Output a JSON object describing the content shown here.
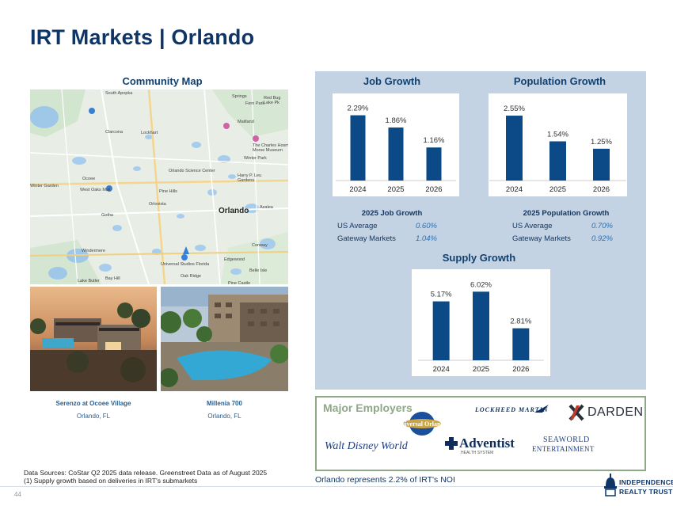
{
  "title": "IRT Markets | Orlando",
  "map_section": {
    "heading": "Community Map",
    "places": [
      "South Apopka",
      "Springs",
      "Fern Park",
      "Red Bug Lake Pk",
      "Clarcona",
      "Lockhart",
      "Maitland",
      "The Charles Hosmer Morse Museum...",
      "Winter Park",
      "Orlando Science Center",
      "Harry P. Leu Gardens",
      "Winter Garden",
      "Ocoee",
      "Pine Hills",
      "Orlovista",
      "Orlando",
      "Azalea",
      "Gotha",
      "Windermere",
      "Conway",
      "Edgewood",
      "Universal Studios Florida",
      "Lake Butler",
      "Bay Hill",
      "Belle Isle",
      "Oak Ridge",
      "Pine Castle",
      "West Oaks Mall"
    ]
  },
  "properties": [
    {
      "name": "Serenzo at Ocoee Village",
      "location": "Orlando, FL"
    },
    {
      "name": "Millenia 700",
      "location": "Orlando, FL"
    }
  ],
  "job_growth": {
    "heading": "Job Growth",
    "stat_heading": "2025 Job Growth",
    "stats": [
      {
        "label": "US Average",
        "value": "0.60%"
      },
      {
        "label": "Gateway Markets",
        "value": "1.04%"
      }
    ]
  },
  "population_growth": {
    "heading": "Population Growth",
    "stat_heading": "2025 Population Growth",
    "stats": [
      {
        "label": "US Average",
        "value": "0.70%"
      },
      {
        "label": "Gateway Markets",
        "value": "0.92%"
      }
    ]
  },
  "supply_growth": {
    "heading": "Supply Growth"
  },
  "chart_data": [
    {
      "type": "bar",
      "title": "Job Growth",
      "categories": [
        "2024",
        "2025",
        "2026"
      ],
      "values": [
        2.29,
        1.86,
        1.16
      ],
      "labels": [
        "2.29%",
        "1.86%",
        "1.16%"
      ],
      "ylim": [
        0,
        2.5
      ],
      "color": "#0b4a86"
    },
    {
      "type": "bar",
      "title": "Population Growth",
      "categories": [
        "2024",
        "2025",
        "2026"
      ],
      "values": [
        2.55,
        1.54,
        1.25
      ],
      "labels": [
        "2.55%",
        "1.54%",
        "1.25%"
      ],
      "ylim": [
        0,
        2.8
      ],
      "color": "#0b4a86"
    },
    {
      "type": "bar",
      "title": "Supply Growth",
      "categories": [
        "2024",
        "2025",
        "2026"
      ],
      "values": [
        5.17,
        6.02,
        2.81
      ],
      "labels": [
        "5.17%",
        "6.02%",
        "2.81%"
      ],
      "ylim": [
        0,
        6.6
      ],
      "color": "#0b4a86"
    }
  ],
  "employers": {
    "heading": "Major Employers",
    "logos": [
      "Universal Orlando",
      "LOCKHEED MARTIN",
      "DARDEN",
      "Walt Disney World",
      "Adventist",
      "HEALTH SYSTEM",
      "SEAWORLD",
      "ENTERTAINMENT"
    ]
  },
  "footnotes": {
    "line1": "Data Sources: CoStar Q2 2025 data release. Greenstreet Data as of August 2025",
    "line2": "(1)  Supply growth based on deliveries in IRT's submarkets"
  },
  "noi_note": "Orlando represents 2.2% of IRT's NOI",
  "page_number": "44",
  "brand": {
    "line1": "INDEPENDENCE",
    "line2": "REALTY TRUST"
  },
  "colors": {
    "brand_navy": "#0f3567",
    "bar": "#0b4a86",
    "panel": "#c3d3e4",
    "employer_border": "#8fa888"
  }
}
